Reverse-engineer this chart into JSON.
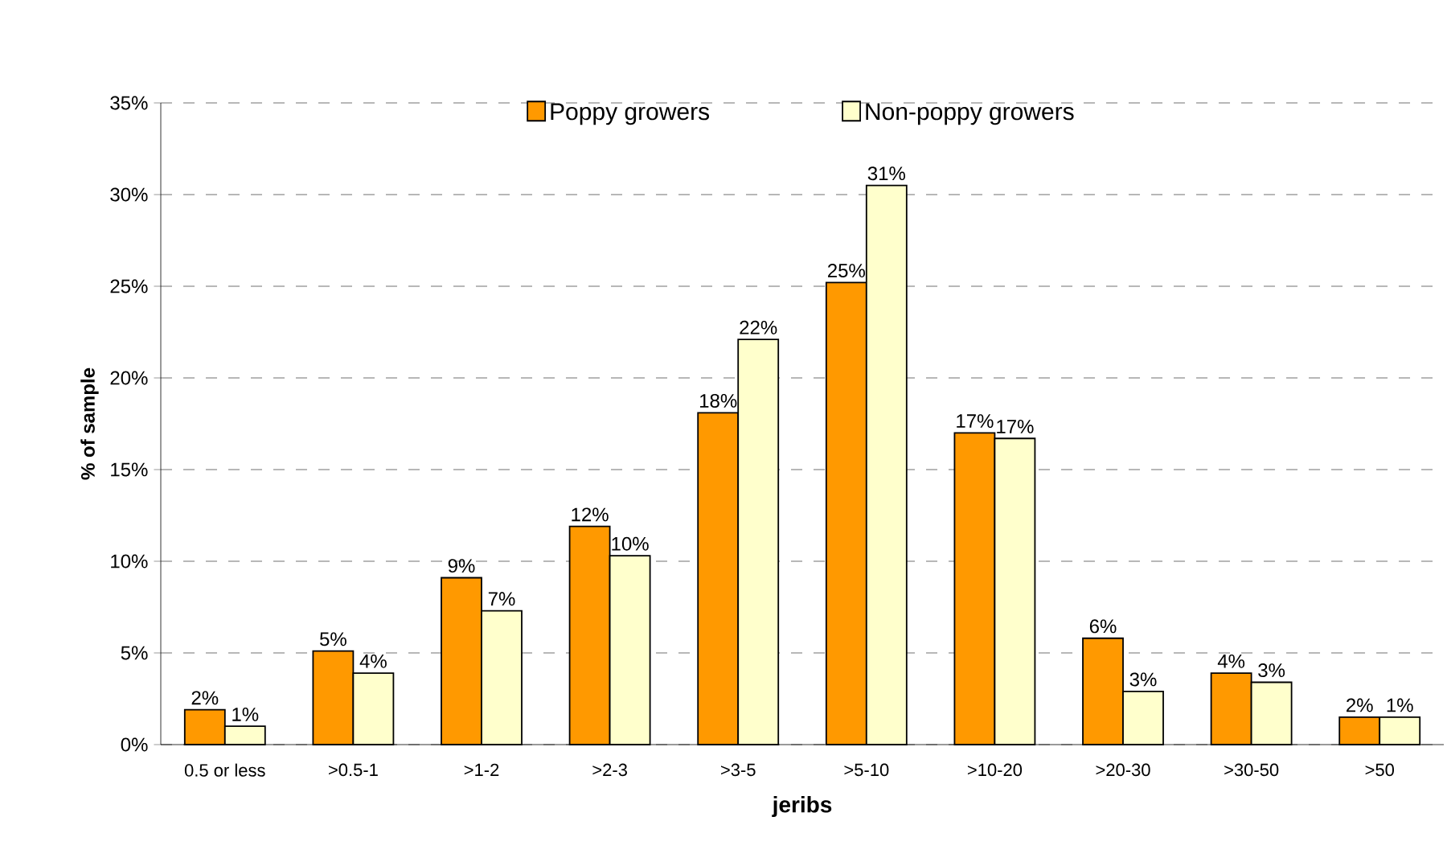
{
  "chart_data": {
    "type": "bar",
    "xlabel": "jeribs",
    "ylabel": "% of sample",
    "categories": [
      "0.5 or less",
      ">0.5-1",
      ">1-2",
      ">2-3",
      ">3-5",
      ">5-10",
      ">10-20",
      ">20-30",
      ">30-50",
      ">50"
    ],
    "series": [
      {
        "name": "Poppy growers",
        "color": "#ff9900",
        "values": [
          1.9,
          5.1,
          9.1,
          11.9,
          18.1,
          25.2,
          17.0,
          5.8,
          3.9,
          1.5
        ],
        "value_labels": [
          "2%",
          "5%",
          "9%",
          "12%",
          "18%",
          "25%",
          "17%",
          "6%",
          "4%",
          "2%"
        ]
      },
      {
        "name": "Non-poppy growers",
        "color": "#ffffcc",
        "values": [
          1.0,
          3.9,
          7.3,
          10.3,
          22.1,
          30.5,
          16.7,
          2.9,
          3.4,
          1.5
        ],
        "value_labels": [
          "1%",
          "4%",
          "7%",
          "10%",
          "22%",
          "31%",
          "17%",
          "3%",
          "3%",
          "1%"
        ]
      }
    ],
    "ylim": [
      0,
      35
    ],
    "yticks": [
      {
        "value": 0,
        "label": "0%"
      },
      {
        "value": 5,
        "label": "5%"
      },
      {
        "value": 10,
        "label": "10%"
      },
      {
        "value": 15,
        "label": "15%"
      },
      {
        "value": 20,
        "label": "20%"
      },
      {
        "value": 25,
        "label": "25%"
      },
      {
        "value": 30,
        "label": "30%"
      },
      {
        "value": 35,
        "label": "35%"
      }
    ],
    "grid": "y",
    "legend": "top"
  }
}
